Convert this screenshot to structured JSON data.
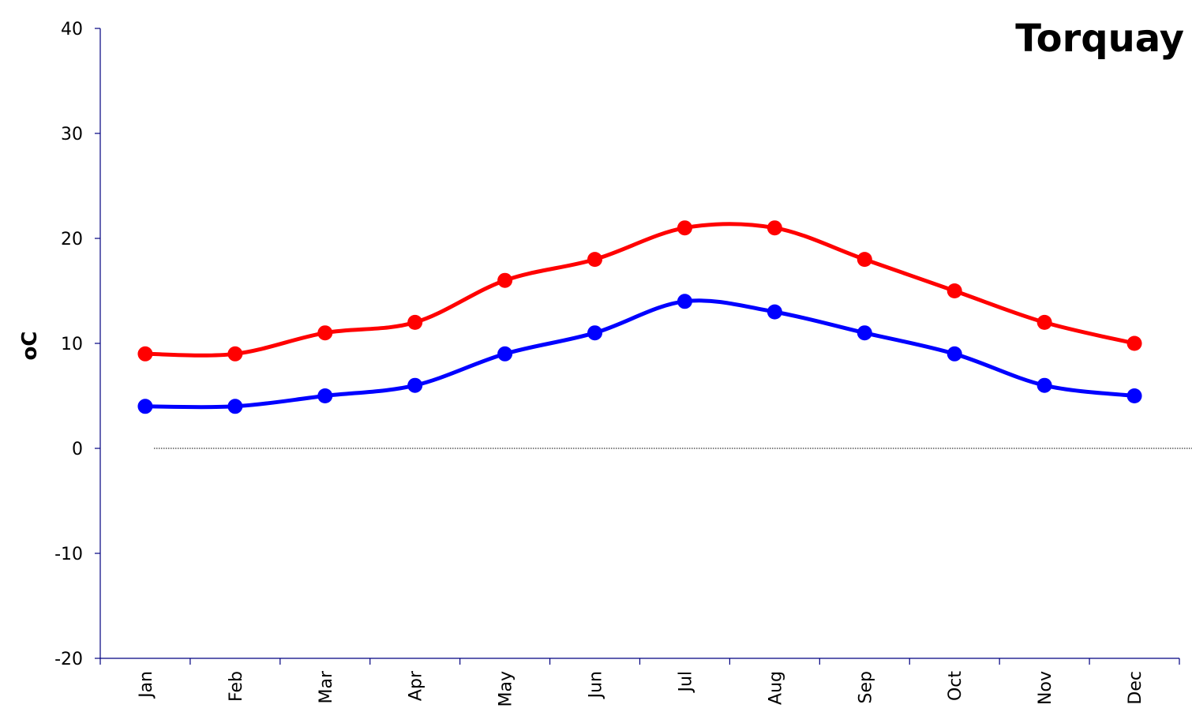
{
  "chart_data": {
    "type": "line",
    "title": "Torquay",
    "xlabel": "",
    "ylabel": "oC",
    "categories": [
      "Jan",
      "Feb",
      "Mar",
      "Apr",
      "May",
      "Jun",
      "Jul",
      "Aug",
      "Sep",
      "Oct",
      "Nov",
      "Dec"
    ],
    "ylim": [
      -20,
      40
    ],
    "yticks": [
      "-20",
      "-10",
      "0",
      "10",
      "20",
      "30",
      "40"
    ],
    "grid": false,
    "legend": "none",
    "zero_line": "dotted",
    "series": [
      {
        "values": [
          9,
          9,
          11,
          12,
          16,
          18,
          21,
          21,
          18,
          15,
          12,
          10
        ],
        "color": "#ff0000"
      },
      {
        "values": [
          4,
          4,
          5,
          6,
          9,
          11,
          14,
          13,
          11,
          9,
          6,
          5
        ],
        "color": "#0000ff"
      }
    ]
  }
}
